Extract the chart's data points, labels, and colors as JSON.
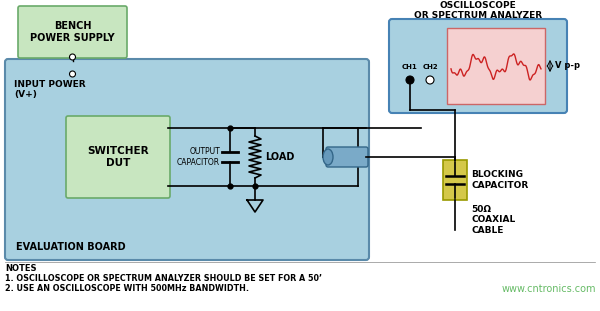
{
  "bg_color": "#ffffff",
  "eval_board_color": "#a8d0e0",
  "eval_board_border": "#5a8aaa",
  "bench_ps_color": "#c8e6c0",
  "switcher_color": "#c8e6c0",
  "osc_box_color": "#a8d0e0",
  "osc_screen_bg": "#f5d0d0",
  "blocking_cap_color": "#d4c84a",
  "coax_color": "#7aaac8",
  "wire_color": "#000000",
  "title_osc": "OSCILLOSCOPE\nOR SPECTRUM ANALYZER",
  "label_bench": "BENCH\nPOWER SUPPLY",
  "label_switcher": "SWITCHER\nDUT",
  "label_output_cap": "OUTPUT\nCAPACITOR",
  "label_load": "LOAD",
  "label_blocking": "BLOCKING\nCAPACITOR",
  "label_coax": "50Ω\nCOAXIAL\nCABLE",
  "label_input_power": "INPUT POWER\n(V+)",
  "label_eval_board": "EVALUATION BOARD",
  "label_ch1": "CH1",
  "label_ch2": "CH2",
  "label_vpp": "V p-p",
  "note1": "NOTES",
  "note2": "1. OSCILLOSCOPE OR SPECTRUM ANALYZER SHOULD BE SET FOR A 50’",
  "note3": "2. USE AN OSCILLOSCOPE WITH 500MHz BANDWIDTH.",
  "watermark": "www.cntronics.com",
  "note_color": "#000000",
  "watermark_color": "#66bb66"
}
